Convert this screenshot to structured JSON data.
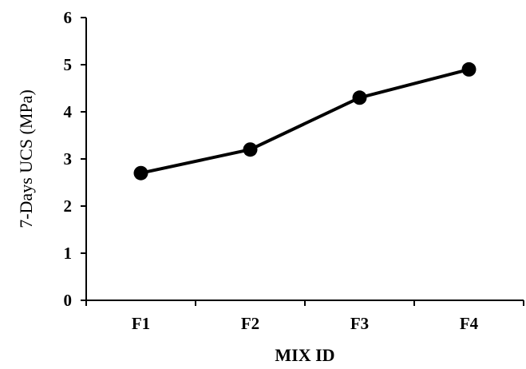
{
  "chart_data": {
    "type": "line",
    "categories": [
      "F1",
      "F2",
      "F3",
      "F4"
    ],
    "series": [
      {
        "values": [
          2.7,
          3.2,
          4.3,
          4.9
        ]
      }
    ],
    "xlabel": "MIX ID",
    "ylabel": "7-Days UCS (MPa)",
    "ylim": [
      0,
      6
    ],
    "yticks": [
      0,
      1,
      2,
      3,
      4,
      5,
      6
    ],
    "grid": false,
    "marker": "filled-circle",
    "line_color": "#000000"
  }
}
